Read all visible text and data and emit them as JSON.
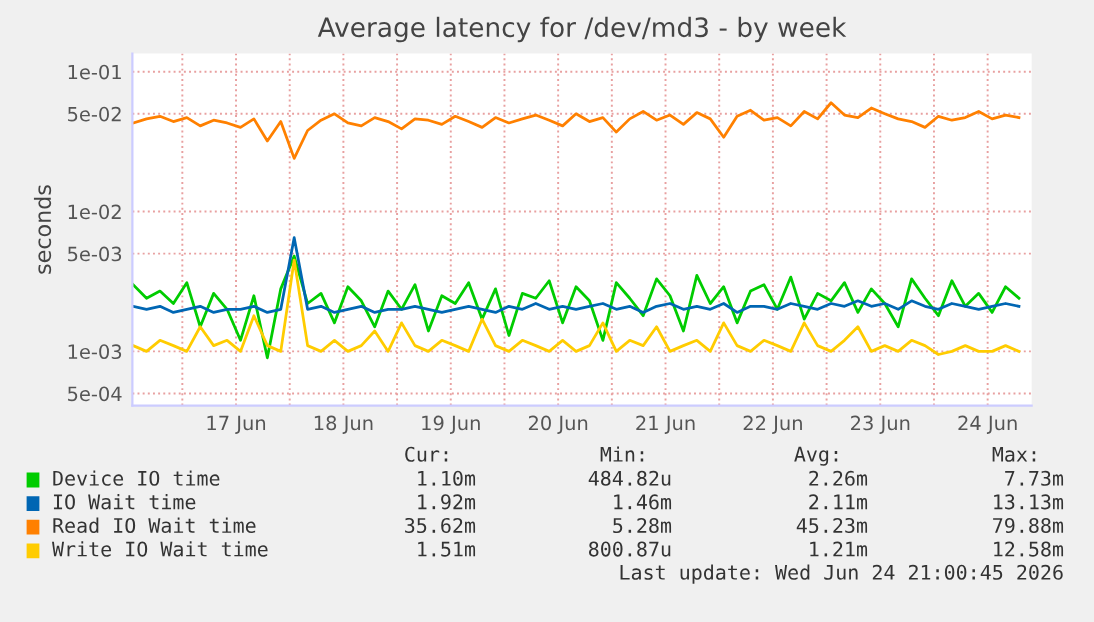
{
  "chart_data": {
    "type": "line",
    "title": "Average latency for /dev/md3 - by week",
    "ylabel": "seconds",
    "x": [
      "2026-06-16T13:00",
      "2026-06-16T16:00",
      "2026-06-16T19:00",
      "2026-06-16T22:00",
      "2026-06-17T01:00",
      "2026-06-17T04:00",
      "2026-06-17T07:00",
      "2026-06-17T10:00",
      "2026-06-17T13:00",
      "2026-06-17T16:00",
      "2026-06-17T19:00",
      "2026-06-17T22:00",
      "2026-06-18T01:00",
      "2026-06-18T04:00",
      "2026-06-18T07:00",
      "2026-06-18T10:00",
      "2026-06-18T13:00",
      "2026-06-18T16:00",
      "2026-06-18T19:00",
      "2026-06-18T22:00",
      "2026-06-19T01:00",
      "2026-06-19T04:00",
      "2026-06-19T07:00",
      "2026-06-19T10:00",
      "2026-06-19T13:00",
      "2026-06-19T16:00",
      "2026-06-19T19:00",
      "2026-06-19T22:00",
      "2026-06-20T01:00",
      "2026-06-20T04:00",
      "2026-06-20T07:00",
      "2026-06-20T10:00",
      "2026-06-20T13:00",
      "2026-06-20T16:00",
      "2026-06-20T19:00",
      "2026-06-20T22:00",
      "2026-06-21T01:00",
      "2026-06-21T04:00",
      "2026-06-21T07:00",
      "2026-06-21T10:00",
      "2026-06-21T13:00",
      "2026-06-21T16:00",
      "2026-06-21T19:00",
      "2026-06-21T22:00",
      "2026-06-22T01:00",
      "2026-06-22T04:00",
      "2026-06-22T07:00",
      "2026-06-22T10:00",
      "2026-06-22T13:00",
      "2026-06-22T16:00",
      "2026-06-22T19:00",
      "2026-06-22T22:00",
      "2026-06-23T01:00",
      "2026-06-23T04:00",
      "2026-06-23T07:00",
      "2026-06-23T10:00",
      "2026-06-23T13:00",
      "2026-06-23T16:00",
      "2026-06-23T19:00",
      "2026-06-23T22:00",
      "2026-06-24T01:00",
      "2026-06-24T04:00",
      "2026-06-24T07:00",
      "2026-06-24T10:00",
      "2026-06-24T13:00",
      "2026-06-24T16:00",
      "2026-06-24T19:00"
    ],
    "series": [
      {
        "name": "Device IO time",
        "color": "#00cc00",
        "values": [
          0.003,
          0.0024,
          0.0027,
          0.0022,
          0.0031,
          0.0015,
          0.0026,
          0.002,
          0.0012,
          0.0025,
          0.0009,
          0.0028,
          0.0048,
          0.0022,
          0.0026,
          0.0016,
          0.0029,
          0.0023,
          0.0015,
          0.0027,
          0.002,
          0.003,
          0.0014,
          0.0025,
          0.0022,
          0.0031,
          0.0017,
          0.0028,
          0.0013,
          0.0026,
          0.0024,
          0.0032,
          0.0016,
          0.0029,
          0.0023,
          0.0012,
          0.0031,
          0.0024,
          0.0018,
          0.0033,
          0.0025,
          0.0014,
          0.0035,
          0.0022,
          0.0029,
          0.0016,
          0.0027,
          0.003,
          0.002,
          0.0034,
          0.0017,
          0.0026,
          0.0023,
          0.0031,
          0.0019,
          0.0028,
          0.0022,
          0.0015,
          0.0033,
          0.0024,
          0.0018,
          0.0032,
          0.0021,
          0.0026,
          0.0019,
          0.0029,
          0.0024
        ]
      },
      {
        "name": "IO Wait time",
        "color": "#0066b3",
        "values": [
          0.0021,
          0.002,
          0.0021,
          0.0019,
          0.002,
          0.0021,
          0.0019,
          0.002,
          0.002,
          0.0021,
          0.0019,
          0.002,
          0.0065,
          0.002,
          0.0021,
          0.0019,
          0.002,
          0.0021,
          0.0019,
          0.002,
          0.002,
          0.0021,
          0.002,
          0.0019,
          0.002,
          0.0021,
          0.002,
          0.0019,
          0.0021,
          0.002,
          0.0022,
          0.002,
          0.0021,
          0.002,
          0.0021,
          0.0022,
          0.002,
          0.0021,
          0.0019,
          0.0021,
          0.0022,
          0.002,
          0.0021,
          0.002,
          0.0022,
          0.0019,
          0.0021,
          0.0021,
          0.002,
          0.0022,
          0.0021,
          0.002,
          0.0022,
          0.0021,
          0.0023,
          0.0021,
          0.0022,
          0.002,
          0.0023,
          0.0021,
          0.002,
          0.0022,
          0.0021,
          0.002,
          0.0021,
          0.0022,
          0.0021
        ]
      },
      {
        "name": "Read IO Wait time",
        "color": "#ff8000",
        "values": [
          0.043,
          0.046,
          0.048,
          0.044,
          0.047,
          0.041,
          0.045,
          0.043,
          0.04,
          0.046,
          0.032,
          0.044,
          0.024,
          0.038,
          0.045,
          0.05,
          0.043,
          0.041,
          0.047,
          0.044,
          0.039,
          0.046,
          0.045,
          0.042,
          0.048,
          0.044,
          0.04,
          0.047,
          0.043,
          0.046,
          0.049,
          0.045,
          0.041,
          0.05,
          0.044,
          0.047,
          0.037,
          0.046,
          0.052,
          0.045,
          0.049,
          0.042,
          0.051,
          0.046,
          0.034,
          0.048,
          0.053,
          0.045,
          0.047,
          0.041,
          0.052,
          0.046,
          0.06,
          0.049,
          0.047,
          0.055,
          0.05,
          0.046,
          0.044,
          0.04,
          0.048,
          0.045,
          0.047,
          0.052,
          0.046,
          0.049,
          0.047
        ]
      },
      {
        "name": "Write IO Wait time",
        "color": "#ffcc00",
        "values": [
          0.0011,
          0.001,
          0.0012,
          0.0011,
          0.001,
          0.0015,
          0.0011,
          0.0012,
          0.001,
          0.0018,
          0.0011,
          0.001,
          0.0045,
          0.0011,
          0.001,
          0.0012,
          0.001,
          0.0011,
          0.0014,
          0.001,
          0.0016,
          0.0011,
          0.001,
          0.0012,
          0.0011,
          0.001,
          0.0017,
          0.0011,
          0.001,
          0.0012,
          0.0011,
          0.001,
          0.0012,
          0.001,
          0.0011,
          0.0016,
          0.001,
          0.0012,
          0.0011,
          0.0015,
          0.001,
          0.0011,
          0.0012,
          0.001,
          0.0016,
          0.0011,
          0.001,
          0.0012,
          0.0011,
          0.001,
          0.0016,
          0.0011,
          0.001,
          0.0012,
          0.0015,
          0.001,
          0.0011,
          0.001,
          0.0012,
          0.0011,
          0.00095,
          0.001,
          0.0011,
          0.001,
          0.001,
          0.0011,
          0.001
        ]
      }
    ],
    "log": "y",
    "ylim": [
      0.00041,
      0.135
    ],
    "yticks": [
      {
        "value": 0.1,
        "label": "1e-01"
      },
      {
        "value": 0.05,
        "label": "5e-02"
      },
      {
        "value": 0.01,
        "label": "1e-02"
      },
      {
        "value": 0.005,
        "label": "5e-03"
      },
      {
        "value": 0.001,
        "label": "1e-03"
      },
      {
        "value": 0.0005,
        "label": "5e-04"
      }
    ],
    "xlim": [
      "2026-06-16T12:50",
      "2026-06-24T21:50"
    ],
    "xticks": [
      {
        "value": "2026-06-17",
        "label": null
      },
      {
        "value": "2026-06-17T12:00",
        "label": "17 Jun"
      },
      {
        "value": "2026-06-18",
        "label": null
      },
      {
        "value": "2026-06-18T12:00",
        "label": "18 Jun"
      },
      {
        "value": "2026-06-19",
        "label": null
      },
      {
        "value": "2026-06-19T12:00",
        "label": "19 Jun"
      },
      {
        "value": "2026-06-20",
        "label": null
      },
      {
        "value": "2026-06-20T12:00",
        "label": "20 Jun"
      },
      {
        "value": "2026-06-21",
        "label": null
      },
      {
        "value": "2026-06-21T12:00",
        "label": "21 Jun"
      },
      {
        "value": "2026-06-22",
        "label": null
      },
      {
        "value": "2026-06-22T12:00",
        "label": "22 Jun"
      },
      {
        "value": "2026-06-23",
        "label": null
      },
      {
        "value": "2026-06-23T12:00",
        "label": "23 Jun"
      },
      {
        "value": "2026-06-24",
        "label": null
      },
      {
        "value": "2026-06-24T12:00",
        "label": "24 Jun"
      }
    ],
    "grid": true,
    "legend": "bottom",
    "marker": "none",
    "line_style": "solid",
    "annotations": [
      "Cur:",
      "Min:",
      "Avg:",
      "Max:",
      "1.10m",
      "484.82u",
      "2.26m",
      "7.73m",
      "1.92m",
      "1.46m",
      "2.11m",
      "13.13m",
      "35.62m",
      "5.28m",
      "45.23m",
      "79.88m",
      "1.51m",
      "800.87u",
      "1.21m",
      "12.58m",
      "Last update: Wed Jun 24 21:00:45 2026"
    ]
  }
}
